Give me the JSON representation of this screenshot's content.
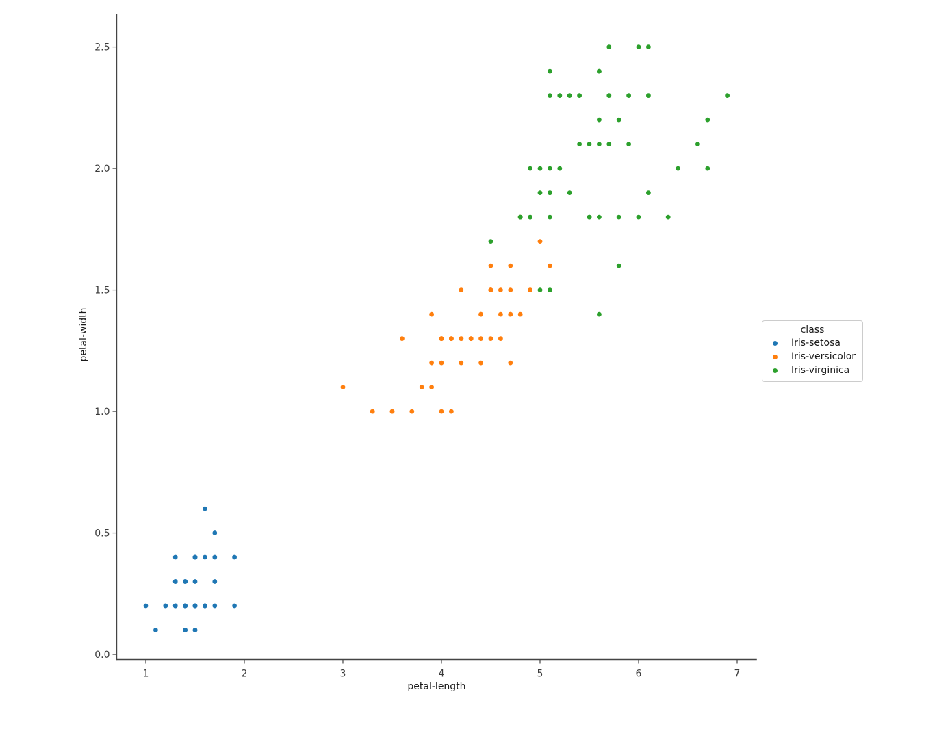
{
  "figure": {
    "background": "#ffffff"
  },
  "style": {
    "axis_color": "#444444",
    "tick_label_color": "#3b3b3b",
    "text_color": "#1a1a1a",
    "legend_border_color": "#cccccc"
  },
  "chart_data": {
    "type": "scatter",
    "title": "",
    "xlabel": "petal-length",
    "ylabel": "petal-width",
    "xlim": [
      0.705,
      7.2
    ],
    "ylim": [
      -0.021,
      2.634
    ],
    "grid": false,
    "x_ticks": {
      "values": [
        1,
        2,
        3,
        4,
        5,
        6,
        7
      ],
      "labels": [
        "1",
        "2",
        "3",
        "4",
        "5",
        "6",
        "7"
      ]
    },
    "y_ticks": {
      "values": [
        0.0,
        0.5,
        1.0,
        1.5,
        2.0,
        2.5
      ],
      "labels": [
        "0.0",
        "0.5",
        "1.0",
        "1.5",
        "2.0",
        "2.5"
      ]
    },
    "legend": {
      "title": "class",
      "position": "right-outside"
    },
    "marker": {
      "shape": "circle",
      "radius_px": 3.4
    },
    "series": [
      {
        "name": "Iris-setosa",
        "color": "#1f77b4",
        "points": [
          [
            1.4,
            0.2
          ],
          [
            1.4,
            0.2
          ],
          [
            1.3,
            0.2
          ],
          [
            1.5,
            0.2
          ],
          [
            1.4,
            0.2
          ],
          [
            1.7,
            0.4
          ],
          [
            1.4,
            0.3
          ],
          [
            1.5,
            0.2
          ],
          [
            1.4,
            0.2
          ],
          [
            1.5,
            0.1
          ],
          [
            1.5,
            0.2
          ],
          [
            1.6,
            0.2
          ],
          [
            1.4,
            0.1
          ],
          [
            1.1,
            0.1
          ],
          [
            1.2,
            0.2
          ],
          [
            1.5,
            0.4
          ],
          [
            1.3,
            0.4
          ],
          [
            1.4,
            0.3
          ],
          [
            1.7,
            0.3
          ],
          [
            1.5,
            0.3
          ],
          [
            1.7,
            0.2
          ],
          [
            1.5,
            0.4
          ],
          [
            1.0,
            0.2
          ],
          [
            1.7,
            0.5
          ],
          [
            1.9,
            0.2
          ],
          [
            1.6,
            0.2
          ],
          [
            1.6,
            0.4
          ],
          [
            1.5,
            0.2
          ],
          [
            1.4,
            0.2
          ],
          [
            1.6,
            0.2
          ],
          [
            1.6,
            0.2
          ],
          [
            1.5,
            0.4
          ],
          [
            1.5,
            0.1
          ],
          [
            1.4,
            0.2
          ],
          [
            1.5,
            0.2
          ],
          [
            1.2,
            0.2
          ],
          [
            1.3,
            0.2
          ],
          [
            1.4,
            0.1
          ],
          [
            1.3,
            0.2
          ],
          [
            1.5,
            0.2
          ],
          [
            1.3,
            0.3
          ],
          [
            1.3,
            0.3
          ],
          [
            1.3,
            0.2
          ],
          [
            1.6,
            0.6
          ],
          [
            1.9,
            0.4
          ],
          [
            1.4,
            0.3
          ],
          [
            1.6,
            0.2
          ],
          [
            1.4,
            0.2
          ],
          [
            1.5,
            0.2
          ],
          [
            1.4,
            0.2
          ]
        ]
      },
      {
        "name": "Iris-versicolor",
        "color": "#ff7f0e",
        "points": [
          [
            4.7,
            1.4
          ],
          [
            4.5,
            1.5
          ],
          [
            4.9,
            1.5
          ],
          [
            4.0,
            1.3
          ],
          [
            4.6,
            1.5
          ],
          [
            4.5,
            1.3
          ],
          [
            4.7,
            1.6
          ],
          [
            3.3,
            1.0
          ],
          [
            4.6,
            1.3
          ],
          [
            3.9,
            1.4
          ],
          [
            3.5,
            1.0
          ],
          [
            4.2,
            1.5
          ],
          [
            4.0,
            1.0
          ],
          [
            4.7,
            1.4
          ],
          [
            3.6,
            1.3
          ],
          [
            4.4,
            1.4
          ],
          [
            4.5,
            1.5
          ],
          [
            4.1,
            1.0
          ],
          [
            4.5,
            1.5
          ],
          [
            3.9,
            1.1
          ],
          [
            4.8,
            1.8
          ],
          [
            4.0,
            1.3
          ],
          [
            4.9,
            1.5
          ],
          [
            4.7,
            1.2
          ],
          [
            4.3,
            1.3
          ],
          [
            4.4,
            1.4
          ],
          [
            4.8,
            1.4
          ],
          [
            5.0,
            1.7
          ],
          [
            4.5,
            1.5
          ],
          [
            3.5,
            1.0
          ],
          [
            3.8,
            1.1
          ],
          [
            3.7,
            1.0
          ],
          [
            3.9,
            1.2
          ],
          [
            5.1,
            1.6
          ],
          [
            4.5,
            1.5
          ],
          [
            4.5,
            1.6
          ],
          [
            4.7,
            1.5
          ],
          [
            4.4,
            1.3
          ],
          [
            4.1,
            1.3
          ],
          [
            4.0,
            1.3
          ],
          [
            4.4,
            1.2
          ],
          [
            4.6,
            1.4
          ],
          [
            4.0,
            1.2
          ],
          [
            3.3,
            1.0
          ],
          [
            4.2,
            1.3
          ],
          [
            4.2,
            1.2
          ],
          [
            4.2,
            1.3
          ],
          [
            4.3,
            1.3
          ],
          [
            3.0,
            1.1
          ],
          [
            4.1,
            1.3
          ]
        ]
      },
      {
        "name": "Iris-virginica",
        "color": "#2ca02c",
        "points": [
          [
            6.0,
            2.5
          ],
          [
            5.1,
            1.9
          ],
          [
            5.9,
            2.1
          ],
          [
            5.6,
            1.8
          ],
          [
            5.8,
            2.2
          ],
          [
            6.6,
            2.1
          ],
          [
            4.5,
            1.7
          ],
          [
            6.3,
            1.8
          ],
          [
            5.8,
            1.8
          ],
          [
            6.1,
            2.5
          ],
          [
            5.1,
            2.0
          ],
          [
            5.3,
            1.9
          ],
          [
            5.5,
            2.1
          ],
          [
            5.0,
            2.0
          ],
          [
            5.1,
            2.4
          ],
          [
            5.3,
            2.3
          ],
          [
            5.5,
            1.8
          ],
          [
            6.7,
            2.2
          ],
          [
            6.9,
            2.3
          ],
          [
            5.0,
            1.5
          ],
          [
            5.7,
            2.3
          ],
          [
            4.9,
            2.0
          ],
          [
            6.7,
            2.0
          ],
          [
            4.9,
            1.8
          ],
          [
            5.7,
            2.1
          ],
          [
            6.0,
            1.8
          ],
          [
            4.8,
            1.8
          ],
          [
            4.9,
            1.8
          ],
          [
            5.6,
            2.1
          ],
          [
            5.8,
            1.6
          ],
          [
            6.1,
            1.9
          ],
          [
            6.4,
            2.0
          ],
          [
            5.6,
            2.2
          ],
          [
            5.1,
            1.5
          ],
          [
            5.6,
            1.4
          ],
          [
            6.1,
            2.3
          ],
          [
            5.6,
            2.4
          ],
          [
            5.5,
            1.8
          ],
          [
            4.8,
            1.8
          ],
          [
            5.4,
            2.1
          ],
          [
            5.6,
            2.4
          ],
          [
            5.1,
            2.3
          ],
          [
            5.1,
            1.9
          ],
          [
            5.9,
            2.3
          ],
          [
            5.7,
            2.5
          ],
          [
            5.2,
            2.3
          ],
          [
            5.0,
            1.9
          ],
          [
            5.2,
            2.0
          ],
          [
            5.4,
            2.3
          ],
          [
            5.1,
            1.8
          ]
        ]
      }
    ]
  }
}
